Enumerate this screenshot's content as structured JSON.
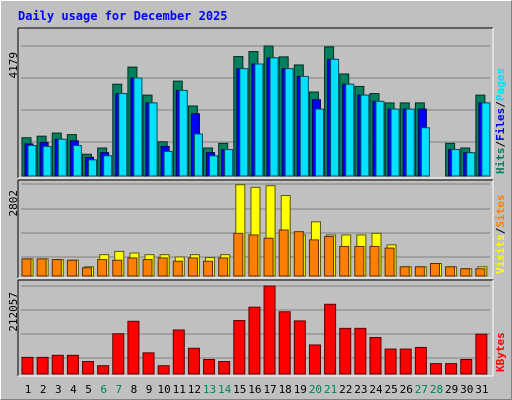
{
  "chart_data": {
    "type": "bar",
    "title": "Daily usage for December 2025",
    "days": [
      "1",
      "2",
      "3",
      "4",
      "5",
      "6",
      "7",
      "8",
      "9",
      "10",
      "11",
      "12",
      "13",
      "14",
      "15",
      "16",
      "17",
      "18",
      "19",
      "20",
      "21",
      "22",
      "23",
      "24",
      "25",
      "26",
      "27",
      "28",
      "29",
      "30",
      "31"
    ],
    "weekend_days": [
      "6",
      "7",
      "13",
      "14",
      "20",
      "21",
      "27",
      "28"
    ],
    "colors": {
      "hits": "#00805c",
      "files": "#0000ff",
      "pages": "#00e0ff",
      "visits": "#ffff00",
      "sites": "#ff8000",
      "kbytes": "#ff0000",
      "weekday_label": "#000000",
      "weekend_label": "#00805c"
    },
    "panels": [
      {
        "id": "hits-files-pages",
        "ymax_label": "4179",
        "ymax": 4179,
        "legend": [
          {
            "text": "Hits",
            "color": "#00805c"
          },
          {
            "text": "/",
            "color": "#000000"
          },
          {
            "text": "Files",
            "color": "#0000ff"
          },
          {
            "text": "/",
            "color": "#000000"
          },
          {
            "text": "Pages",
            "color": "#00e0ff"
          }
        ],
        "series": [
          {
            "name": "Hits",
            "values": [
              1230,
              1280,
              1380,
              1330,
              700,
              900,
              2950,
              3500,
              2600,
              1100,
              3050,
              2250,
              900,
              1050,
              3840,
              4000,
              4179,
              3830,
              3570,
              2700,
              4150,
              3280,
              2880,
              2650,
              2350,
              2350,
              2350,
              0,
              1050,
              900,
              2600
            ]
          },
          {
            "name": "Files",
            "values": [
              1030,
              1080,
              1180,
              1130,
              600,
              750,
              2650,
              3150,
              2350,
              950,
              2750,
              2000,
              750,
              850,
              3450,
              3600,
              3800,
              3450,
              3200,
              2450,
              3750,
              2950,
              2600,
              2400,
              2150,
              2150,
              2150,
              0,
              850,
              750,
              2350
            ]
          },
          {
            "name": "Pages",
            "values": [
              980,
              950,
              1180,
              980,
              520,
              650,
              2650,
              3150,
              2350,
              790,
              2750,
              1350,
              650,
              850,
              3450,
              3600,
              3800,
              3450,
              3200,
              2150,
              3750,
              2950,
              2600,
              2400,
              2150,
              2150,
              1550,
              0,
              850,
              750,
              2350
            ]
          }
        ]
      },
      {
        "id": "visits-sites",
        "ymax_label": "2802",
        "ymax": 2802,
        "legend": [
          {
            "text": "Visits",
            "color": "#ffff00"
          },
          {
            "text": "/",
            "color": "#000000"
          },
          {
            "text": "Sites",
            "color": "#ff8000"
          }
        ],
        "series": [
          {
            "name": "Visits",
            "values": [
              520,
              520,
              500,
              480,
              280,
              650,
              750,
              700,
              650,
              650,
              580,
              650,
              560,
              650,
              2780,
              2700,
              2750,
              2450,
              1250,
              1650,
              1250,
              1250,
              1250,
              1300,
              950,
              280,
              280,
              380,
              280,
              220,
              280
            ]
          },
          {
            "name": "Sites",
            "values": [
              520,
              520,
              500,
              480,
              250,
              500,
              480,
              550,
              500,
              550,
              450,
              550,
              450,
              550,
              1300,
              1250,
              1150,
              1400,
              1350,
              1100,
              1200,
              900,
              900,
              900,
              850,
              280,
              280,
              380,
              280,
              220,
              220
            ]
          }
        ]
      },
      {
        "id": "kbytes",
        "ymax_label": "212057",
        "ymax": 212057,
        "legend": [
          {
            "text": "KBytes",
            "color": "#ff0000"
          }
        ],
        "series": [
          {
            "name": "KBytes",
            "values": [
              40000,
              40000,
              45000,
              45000,
              30000,
              20000,
              97000,
              127000,
              51000,
              20000,
              106000,
              62000,
              35000,
              30000,
              129000,
              161000,
              212057,
              150000,
              128000,
              70000,
              168000,
              110000,
              110000,
              88000,
              60000,
              60000,
              64000,
              25000,
              25000,
              35000,
              96000
            ]
          }
        ]
      }
    ]
  }
}
